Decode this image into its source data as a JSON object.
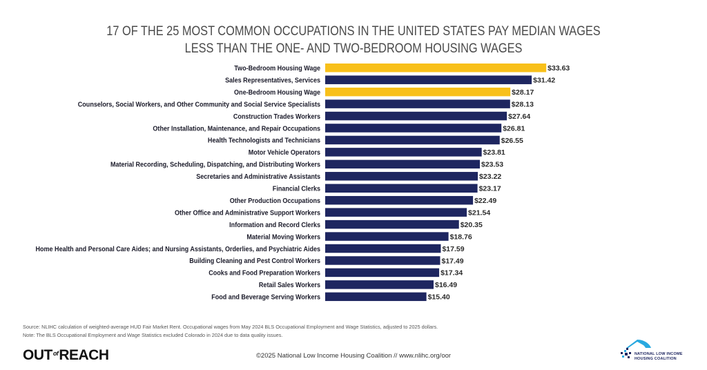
{
  "title": {
    "line1": "17 OF THE 25 MOST COMMON OCCUPATIONS IN THE UNITED STATES PAY MEDIAN WAGES",
    "line2": "LESS THAN THE ONE- AND TWO-BEDROOM HOUSING WAGES"
  },
  "colors": {
    "housing_wage": "#f8c01a",
    "occupation": "#1e2660",
    "title_text": "#4a4a4a",
    "nlihc_blue": "#29a9e0"
  },
  "chart_data": {
    "type": "bar",
    "orientation": "horizontal",
    "title": "17 OF THE 25 MOST COMMON OCCUPATIONS IN THE UNITED STATES PAY MEDIAN WAGES LESS THAN THE ONE- AND TWO-BEDROOM HOUSING WAGES",
    "xlabel": "",
    "ylabel": "",
    "xlim": [
      0,
      34
    ],
    "grid": false,
    "legend": "none",
    "value_prefix": "$",
    "categories": [
      "Two-Bedroom Housing Wage",
      "Sales Representatives, Services",
      "One-Bedroom Housing Wage",
      "Counselors, Social Workers, and Other Community and Social Service Specialists",
      "Construction Trades Workers",
      "Other Installation, Maintenance, and Repair Occupations",
      "Health Technologists and Technicians",
      "Motor Vehicle Operators",
      "Material Recording, Scheduling, Dispatching, and Distributing Workers",
      "Secretaries and Administrative Assistants",
      "Financial Clerks",
      "Other Production Occupations",
      "Other Office and Administrative Support Workers",
      "Information and Record Clerks",
      "Material Moving Workers",
      "Home Health and Personal Care Aides; and Nursing Assistants, Orderlies, and Psychiatric Aides",
      "Building Cleaning and Pest Control Workers",
      "Cooks and Food Preparation Workers",
      "Retail Sales Workers",
      "Food and Beverage Serving Workers"
    ],
    "values": [
      33.63,
      31.42,
      28.17,
      28.13,
      27.64,
      26.81,
      26.55,
      23.81,
      23.53,
      23.22,
      23.17,
      22.49,
      21.54,
      20.35,
      18.76,
      17.59,
      17.49,
      17.34,
      16.49,
      15.4
    ],
    "value_labels": [
      "$33.63",
      "$31.42",
      "$28.17",
      "$28.13",
      "$27.64",
      "$26.81",
      "$26.55",
      "$23.81",
      "$23.53",
      "$23.22",
      "$23.17",
      "$22.49",
      "$21.54",
      "$20.35",
      "$18.76",
      "$17.59",
      "$17.49",
      "$17.34",
      "$16.49",
      "$15.40"
    ],
    "highlight": [
      true,
      false,
      true,
      false,
      false,
      false,
      false,
      false,
      false,
      false,
      false,
      false,
      false,
      false,
      false,
      false,
      false,
      false,
      false,
      false
    ]
  },
  "notes": {
    "source": "Source: NLIHC calculation of weighted-average HUD Fair Market Rent. Occupational wages from May 2024 BLS Occupational Employment and Wage Statistics, adjusted to 2025 dollars.",
    "note": "Note: The BLS Occupational Employment and Wage Statistics excluded Colorado in 2024 due to data quality issues."
  },
  "footer": {
    "logo_left_a": "OUT",
    "logo_left_of": "of",
    "logo_left_b": "REACH",
    "copyright": "©2025 National Low Income Housing Coalition // www.nlihc.org/oor",
    "nlihc_line1": "NATIONAL LOW INCOME",
    "nlihc_line2": "HOUSING COALITION"
  }
}
